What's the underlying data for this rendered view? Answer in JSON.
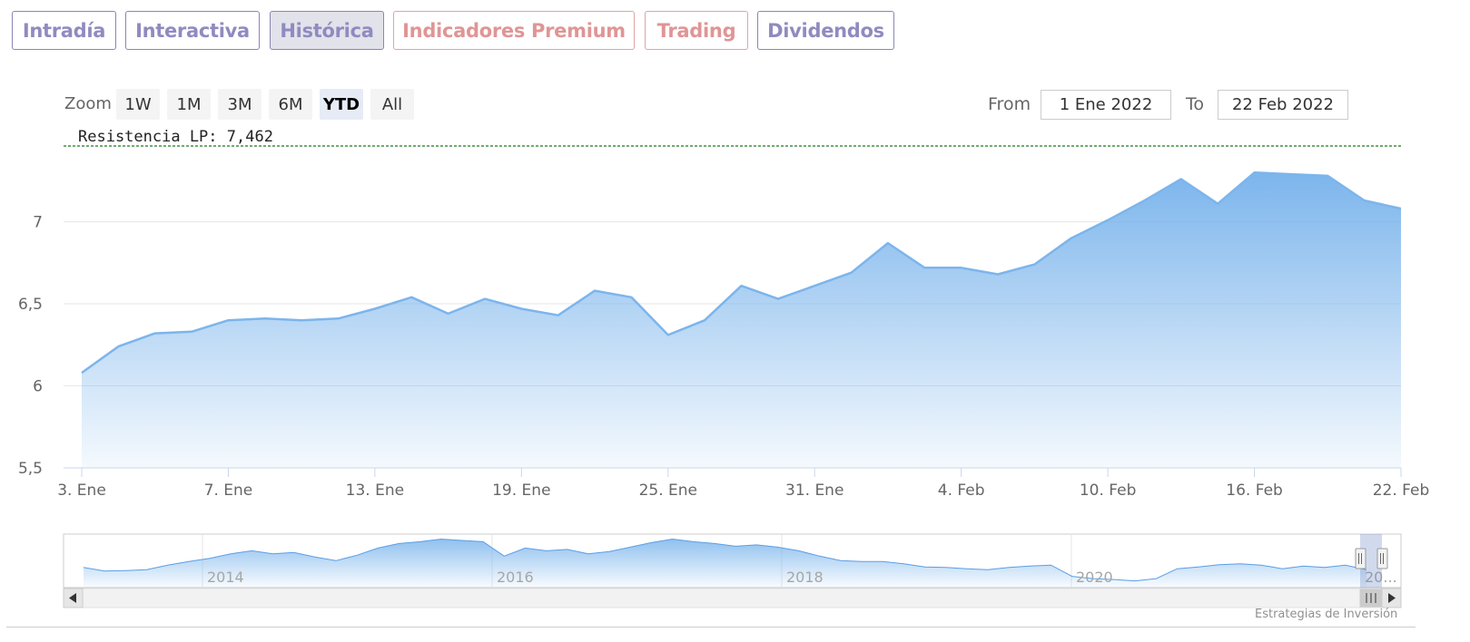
{
  "tabs": [
    {
      "label": "Intradía",
      "active": false,
      "premium": false
    },
    {
      "label": "Interactiva",
      "active": false,
      "premium": false
    },
    {
      "label": "Histórica",
      "active": true,
      "premium": false
    },
    {
      "label": "Indicadores Premium",
      "active": false,
      "premium": true
    },
    {
      "label": "Trading",
      "active": false,
      "premium": true
    },
    {
      "label": "Dividendos",
      "active": false,
      "premium": false
    }
  ],
  "range_selector": {
    "zoom_label": "Zoom",
    "buttons": [
      "1W",
      "1M",
      "3M",
      "6M",
      "YTD",
      "All"
    ],
    "selected": "YTD",
    "from_label": "From",
    "from_value": "1 Ene 2022",
    "to_label": "To",
    "to_value": "22 Feb 2022"
  },
  "chart_data": {
    "type": "area",
    "ylim": [
      5.5,
      7.462
    ],
    "y_ticks": [
      5.5,
      6,
      6.5,
      7
    ],
    "y_tick_labels": [
      "5,5",
      "6",
      "6,5",
      "7"
    ],
    "x_ticks": [
      {
        "date": "2022-01-03",
        "label": "3. Ene"
      },
      {
        "date": "2022-01-07",
        "label": "7. Ene"
      },
      {
        "date": "2022-01-13",
        "label": "13. Ene"
      },
      {
        "date": "2022-01-19",
        "label": "19. Ene"
      },
      {
        "date": "2022-01-25",
        "label": "25. Ene"
      },
      {
        "date": "2022-01-31",
        "label": "31. Ene"
      },
      {
        "date": "2022-02-04",
        "label": "4. Feb"
      },
      {
        "date": "2022-02-10",
        "label": "10. Feb"
      },
      {
        "date": "2022-02-16",
        "label": "16. Feb"
      },
      {
        "date": "2022-02-22",
        "label": "22. Feb"
      }
    ],
    "grid": true,
    "plot_lines": [
      {
        "label": "Resistencia LP: 7,462",
        "value": 7.462,
        "color": "#1a7a1a",
        "style": "dashed"
      }
    ],
    "series": [
      {
        "color": "#7cb5ec",
        "x": [
          "2022-01-03",
          "2022-01-04",
          "2022-01-05",
          "2022-01-06",
          "2022-01-07",
          "2022-01-10",
          "2022-01-11",
          "2022-01-12",
          "2022-01-13",
          "2022-01-14",
          "2022-01-17",
          "2022-01-18",
          "2022-01-19",
          "2022-01-20",
          "2022-01-21",
          "2022-01-24",
          "2022-01-25",
          "2022-01-26",
          "2022-01-27",
          "2022-01-28",
          "2022-01-31",
          "2022-02-01",
          "2022-02-02",
          "2022-02-03",
          "2022-02-04",
          "2022-02-07",
          "2022-02-08",
          "2022-02-09",
          "2022-02-10",
          "2022-02-11",
          "2022-02-14",
          "2022-02-15",
          "2022-02-16",
          "2022-02-17",
          "2022-02-18",
          "2022-02-21",
          "2022-02-22"
        ],
        "values": [
          6.08,
          6.24,
          6.32,
          6.33,
          6.4,
          6.41,
          6.4,
          6.41,
          6.47,
          6.54,
          6.44,
          6.53,
          6.47,
          6.43,
          6.58,
          6.54,
          6.31,
          6.4,
          6.61,
          6.53,
          6.61,
          6.69,
          6.87,
          6.72,
          6.72,
          6.68,
          6.74,
          6.9,
          7.01,
          7.13,
          7.26,
          7.11,
          7.3,
          7.29,
          7.28,
          7.13,
          7.08
        ]
      }
    ]
  },
  "navigator": {
    "year_labels": [
      "2014",
      "2016",
      "2018",
      "2020",
      "20..."
    ],
    "values": [
      6.55,
      6.47,
      6.48,
      6.5,
      6.6,
      6.68,
      6.75,
      6.85,
      6.92,
      6.85,
      6.88,
      6.78,
      6.7,
      6.82,
      6.98,
      7.08,
      7.12,
      7.18,
      7.15,
      7.12,
      6.8,
      6.98,
      6.92,
      6.95,
      6.85,
      6.9,
      7.0,
      7.1,
      7.18,
      7.12,
      7.08,
      7.02,
      7.05,
      7.0,
      6.92,
      6.8,
      6.7,
      6.68,
      6.68,
      6.63,
      6.56,
      6.55,
      6.52,
      6.5,
      6.55,
      6.58,
      6.6,
      6.35,
      6.3,
      6.28,
      6.25,
      6.3,
      6.52,
      6.56,
      6.61,
      6.63,
      6.6,
      6.52,
      6.58,
      6.55,
      6.6,
      6.5
    ]
  },
  "credits": "Estrategias de Inversión"
}
